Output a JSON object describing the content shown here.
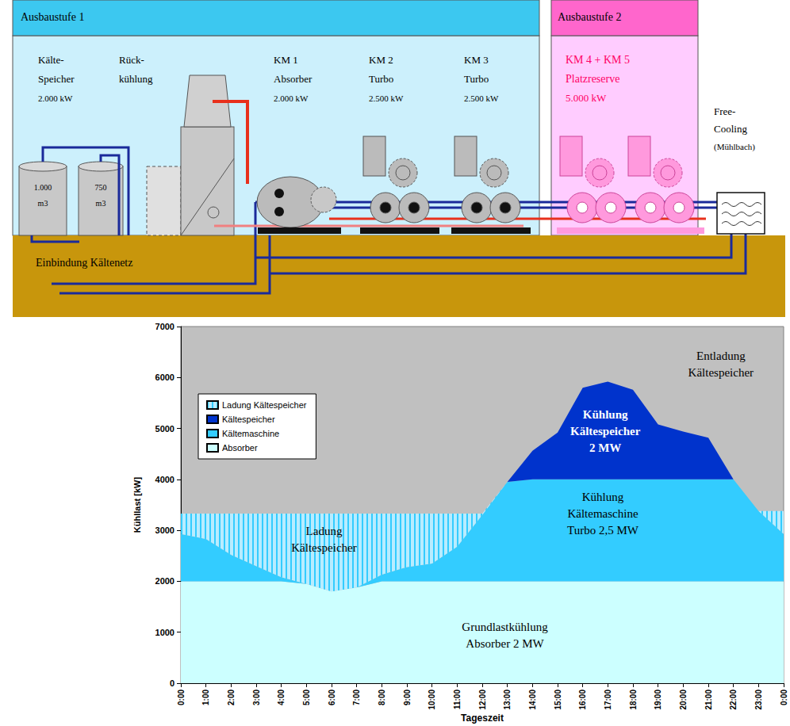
{
  "diagram": {
    "stages": [
      "Ausbaustufe 1",
      "Ausbaustufe 2"
    ],
    "components": [
      {
        "lines": [
          "Kälte-",
          "Speicher",
          "2.000 kW"
        ]
      },
      {
        "lines": [
          "Rück-",
          "kühlung"
        ]
      },
      {
        "lines": [
          "KM 1",
          "Absorber",
          "2.000 kW"
        ]
      },
      {
        "lines": [
          "KM 2",
          "Turbo",
          "2.500 kW"
        ]
      },
      {
        "lines": [
          "KM 3",
          "Turbo",
          "2.500 kW"
        ]
      },
      {
        "lines": [
          "KM 4 + KM 5",
          "Platzreserve",
          "5.000 kW"
        ]
      },
      {
        "lines": [
          "Free-",
          "Cooling",
          "(Mühlbach)"
        ]
      }
    ],
    "tanks": [
      {
        "lines": [
          "1.000",
          "m3"
        ]
      },
      {
        "lines": [
          "750",
          "m3"
        ]
      }
    ],
    "network": "Einbindung Kältenetz"
  },
  "chart_data": {
    "type": "area",
    "stacked": true,
    "x_label": "Tageszeit",
    "y_label": "Kühllast [kW]",
    "categories": [
      "0:00",
      "1:00",
      "2:00",
      "3:00",
      "4:00",
      "5:00",
      "6:00",
      "7:00",
      "8:00",
      "9:00",
      "10:00",
      "11:00",
      "12:00",
      "13:00",
      "14:00",
      "15:00",
      "16:00",
      "17:00",
      "18:00",
      "19:00",
      "20:00",
      "21:00",
      "22:00",
      "23:00",
      "0:00"
    ],
    "series": [
      {
        "name": "Absorber",
        "color": "#ccffff",
        "values": [
          2000,
          2000,
          2000,
          2000,
          2000,
          1950,
          1800,
          1880,
          2000,
          2000,
          2000,
          2000,
          2000,
          2000,
          2000,
          2000,
          2000,
          2000,
          2000,
          2000,
          2000,
          2000,
          2000,
          2000,
          2000
        ]
      },
      {
        "name": "Kältemaschine",
        "color": "#33ccff",
        "values": [
          930,
          830,
          520,
          300,
          80,
          0,
          0,
          0,
          130,
          280,
          350,
          680,
          1300,
          1950,
          2000,
          2000,
          2000,
          2000,
          2000,
          2000,
          2000,
          2000,
          2000,
          1380,
          930
        ]
      },
      {
        "name": "Kältespeicher",
        "color": "#0033cc",
        "values": [
          0,
          0,
          0,
          0,
          0,
          0,
          0,
          0,
          0,
          0,
          0,
          0,
          0,
          0,
          560,
          920,
          1800,
          1920,
          1760,
          1080,
          940,
          820,
          0,
          0,
          0
        ]
      },
      {
        "name": "Ladung Kältespeicher",
        "color": "#33ccff",
        "values": [
          400,
          500,
          810,
          1030,
          1250,
          1380,
          1530,
          1450,
          1200,
          1050,
          980,
          650,
          30,
          0,
          0,
          0,
          0,
          0,
          0,
          0,
          0,
          0,
          0,
          0,
          450
        ]
      }
    ],
    "ylim": [
      0,
      7000
    ],
    "yticks": [
      0,
      1000,
      2000,
      3000,
      4000,
      5000,
      6000,
      7000
    ],
    "grid": false,
    "legend": "upper left",
    "annotations": [
      {
        "text": [
          "Ladung",
          "Kältespeicher"
        ],
        "x": 5.7,
        "y": 2830,
        "color": "#000000"
      },
      {
        "text": [
          "Kühlung",
          "Kältespeicher",
          "2 MW"
        ],
        "x": 16.9,
        "y": 4940,
        "color": "#ffffff"
      },
      {
        "text": [
          "Kühlung",
          "Kältemaschine",
          "Turbo 2,5 MW"
        ],
        "x": 16.8,
        "y": 3330,
        "color": "#000000"
      },
      {
        "text": [
          "Grundlastkühlung",
          "Absorber 2 MW"
        ],
        "x": 12.9,
        "y": 940,
        "color": "#000000"
      },
      {
        "text": [
          "Entladung",
          "Kältespeicher"
        ],
        "x": 21.5,
        "y": 6260,
        "color": "#000000"
      }
    ]
  }
}
